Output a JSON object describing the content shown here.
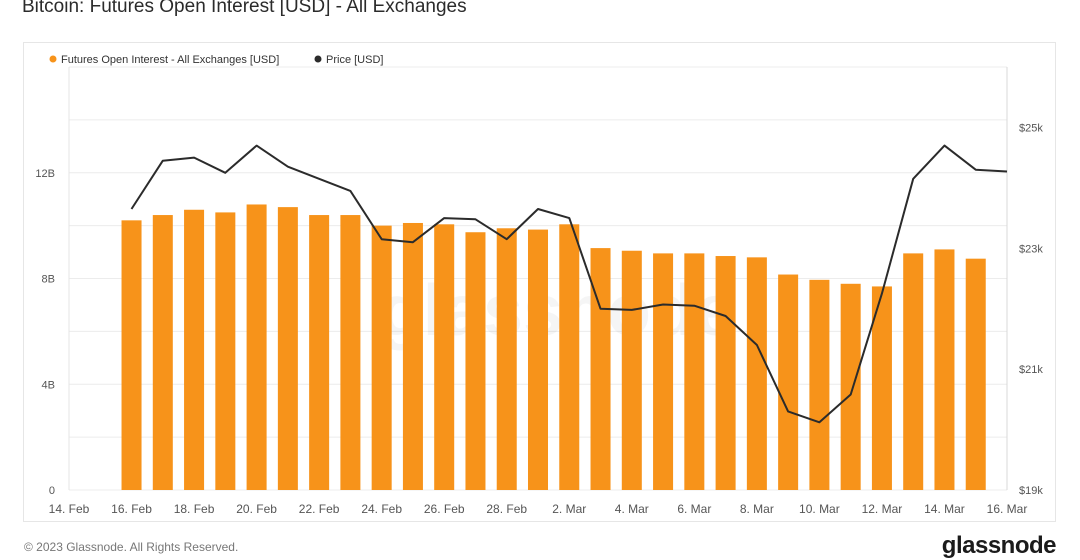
{
  "page": {
    "title": "Bitcoin: Futures Open Interest [USD] - All Exchanges",
    "copyright": "© 2023 Glassnode. All Rights Reserved.",
    "brand": "glassnode",
    "watermark": "glassnode"
  },
  "colors": {
    "bar": "#f7931a",
    "price_line": "#2b2b2b",
    "grid": "#ececec",
    "axis_text": "#555555"
  },
  "chart_data": {
    "type": "bar",
    "title": "Bitcoin: Futures Open Interest [USD] - All Exchanges",
    "legend_position": "top-left",
    "grid": true,
    "x_ticks": [
      "14. Feb",
      "16. Feb",
      "18. Feb",
      "20. Feb",
      "22. Feb",
      "24. Feb",
      "26. Feb",
      "28. Feb",
      "2. Mar",
      "4. Mar",
      "6. Mar",
      "8. Mar",
      "10. Mar",
      "12. Mar",
      "14. Mar",
      "16. Mar"
    ],
    "x_range": [
      "2023-02-14",
      "2023-03-16"
    ],
    "y_left": {
      "ticks": [
        0,
        4,
        8,
        12
      ],
      "tick_labels": [
        "0",
        "4B",
        "8B",
        "12B"
      ],
      "range": [
        0,
        16
      ],
      "unit": "B"
    },
    "y_right": {
      "ticks": [
        19000,
        21000,
        23000,
        25000
      ],
      "tick_labels": [
        "$19k",
        "$21k",
        "$23k",
        "$25k"
      ],
      "range": [
        19000,
        26000
      ]
    },
    "series": [
      {
        "name": "Futures Open Interest - All Exchanges [USD]",
        "type": "bar",
        "axis": "left",
        "x": [
          "2023-02-16",
          "2023-02-17",
          "2023-02-18",
          "2023-02-19",
          "2023-02-20",
          "2023-02-21",
          "2023-02-22",
          "2023-02-23",
          "2023-02-24",
          "2023-02-25",
          "2023-02-26",
          "2023-02-27",
          "2023-02-28",
          "2023-03-01",
          "2023-03-02",
          "2023-03-03",
          "2023-03-04",
          "2023-03-05",
          "2023-03-06",
          "2023-03-07",
          "2023-03-08",
          "2023-03-09",
          "2023-03-10",
          "2023-03-11",
          "2023-03-12",
          "2023-03-13",
          "2023-03-14",
          "2023-03-15"
        ],
        "values": [
          10.2,
          10.4,
          10.6,
          10.5,
          10.8,
          10.7,
          10.4,
          10.4,
          10.0,
          10.1,
          10.05,
          9.75,
          9.9,
          9.85,
          10.05,
          9.15,
          9.05,
          8.95,
          8.95,
          8.85,
          8.8,
          8.15,
          7.95,
          7.8,
          7.7,
          8.95,
          9.1,
          8.75
        ]
      },
      {
        "name": "Price [USD]",
        "type": "line",
        "axis": "right",
        "x": [
          "2023-02-16",
          "2023-02-17",
          "2023-02-18",
          "2023-02-19",
          "2023-02-20",
          "2023-02-21",
          "2023-02-22",
          "2023-02-23",
          "2023-02-24",
          "2023-02-25",
          "2023-02-26",
          "2023-02-27",
          "2023-02-28",
          "2023-03-01",
          "2023-03-02",
          "2023-03-03",
          "2023-03-04",
          "2023-03-05",
          "2023-03-06",
          "2023-03-07",
          "2023-03-08",
          "2023-03-09",
          "2023-03-10",
          "2023-03-11",
          "2023-03-12",
          "2023-03-13",
          "2023-03-14",
          "2023-03-15",
          "2023-03-16"
        ],
        "values": [
          23650,
          24450,
          24500,
          24250,
          24700,
          24350,
          24150,
          23950,
          23150,
          23100,
          23500,
          23480,
          23150,
          23650,
          23500,
          22000,
          21980,
          22070,
          22050,
          21880,
          21400,
          20300,
          20120,
          20580,
          22250,
          24150,
          24700,
          24300,
          24270
        ]
      }
    ]
  }
}
